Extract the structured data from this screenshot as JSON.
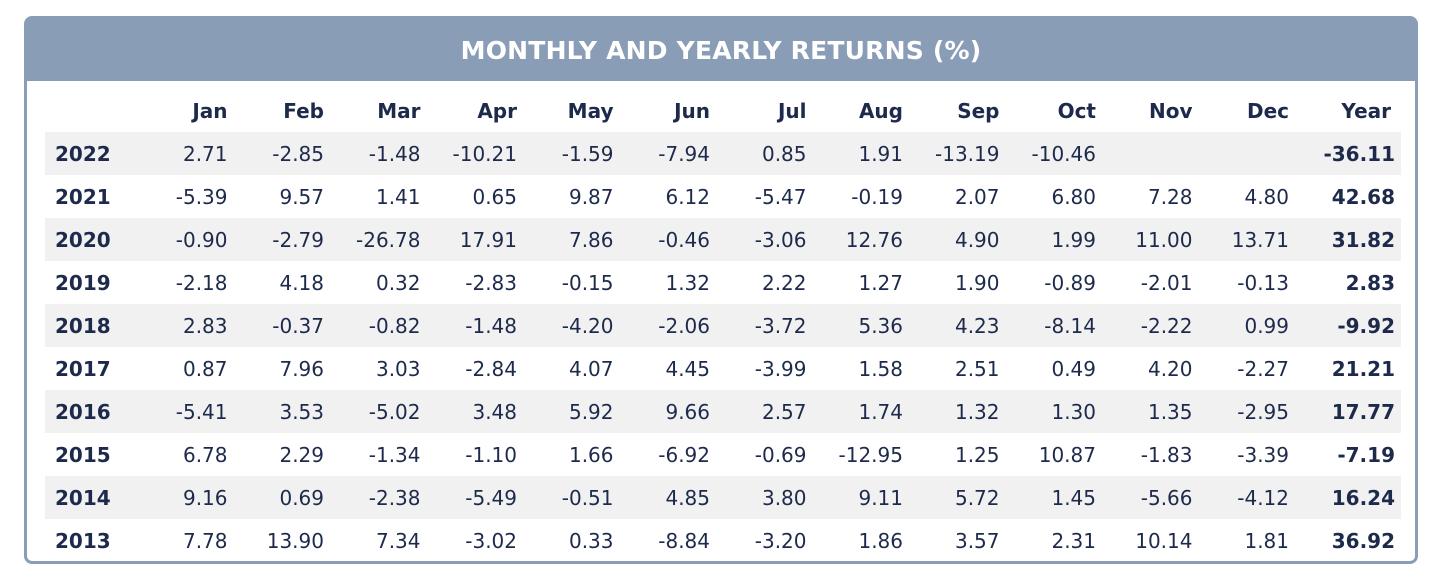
{
  "title": "MONTHLY AND YEARLY RETURNS (%)",
  "headers": [
    "",
    "Jan",
    "Feb",
    "Mar",
    "Apr",
    "May",
    "Jun",
    "Jul",
    "Aug",
    "Sep",
    "Oct",
    "Nov",
    "Dec",
    "Year"
  ],
  "rows": [
    {
      "year": "2022",
      "months": [
        "2.71",
        "-2.85",
        "-1.48",
        "-10.21",
        "-1.59",
        "-7.94",
        "0.85",
        "1.91",
        "-13.19",
        "-10.46",
        "",
        ""
      ],
      "total": "-36.11"
    },
    {
      "year": "2021",
      "months": [
        "-5.39",
        "9.57",
        "1.41",
        "0.65",
        "9.87",
        "6.12",
        "-5.47",
        "-0.19",
        "2.07",
        "6.80",
        "7.28",
        "4.80"
      ],
      "total": "42.68"
    },
    {
      "year": "2020",
      "months": [
        "-0.90",
        "-2.79",
        "-26.78",
        "17.91",
        "7.86",
        "-0.46",
        "-3.06",
        "12.76",
        "4.90",
        "1.99",
        "11.00",
        "13.71"
      ],
      "total": "31.82"
    },
    {
      "year": "2019",
      "months": [
        "-2.18",
        "4.18",
        "0.32",
        "-2.83",
        "-0.15",
        "1.32",
        "2.22",
        "1.27",
        "1.90",
        "-0.89",
        "-2.01",
        "-0.13"
      ],
      "total": "2.83"
    },
    {
      "year": "2018",
      "months": [
        "2.83",
        "-0.37",
        "-0.82",
        "-1.48",
        "-4.20",
        "-2.06",
        "-3.72",
        "5.36",
        "4.23",
        "-8.14",
        "-2.22",
        "0.99"
      ],
      "total": "-9.92"
    },
    {
      "year": "2017",
      "months": [
        "0.87",
        "7.96",
        "3.03",
        "-2.84",
        "4.07",
        "4.45",
        "-3.99",
        "1.58",
        "2.51",
        "0.49",
        "4.20",
        "-2.27"
      ],
      "total": "21.21"
    },
    {
      "year": "2016",
      "months": [
        "-5.41",
        "3.53",
        "-5.02",
        "3.48",
        "5.92",
        "9.66",
        "2.57",
        "1.74",
        "1.32",
        "1.30",
        "1.35",
        "-2.95"
      ],
      "total": "17.77"
    },
    {
      "year": "2015",
      "months": [
        "6.78",
        "2.29",
        "-1.34",
        "-1.10",
        "1.66",
        "-6.92",
        "-0.69",
        "-12.95",
        "1.25",
        "10.87",
        "-1.83",
        "-3.39"
      ],
      "total": "-7.19"
    },
    {
      "year": "2014",
      "months": [
        "9.16",
        "0.69",
        "-2.38",
        "-5.49",
        "-0.51",
        "4.85",
        "3.80",
        "9.11",
        "5.72",
        "1.45",
        "-5.66",
        "-4.12"
      ],
      "total": "16.24"
    },
    {
      "year": "2013",
      "months": [
        "7.78",
        "13.90",
        "7.34",
        "-3.02",
        "0.33",
        "-8.84",
        "-3.20",
        "1.86",
        "3.57",
        "2.31",
        "10.14",
        "1.81"
      ],
      "total": "36.92"
    }
  ]
}
